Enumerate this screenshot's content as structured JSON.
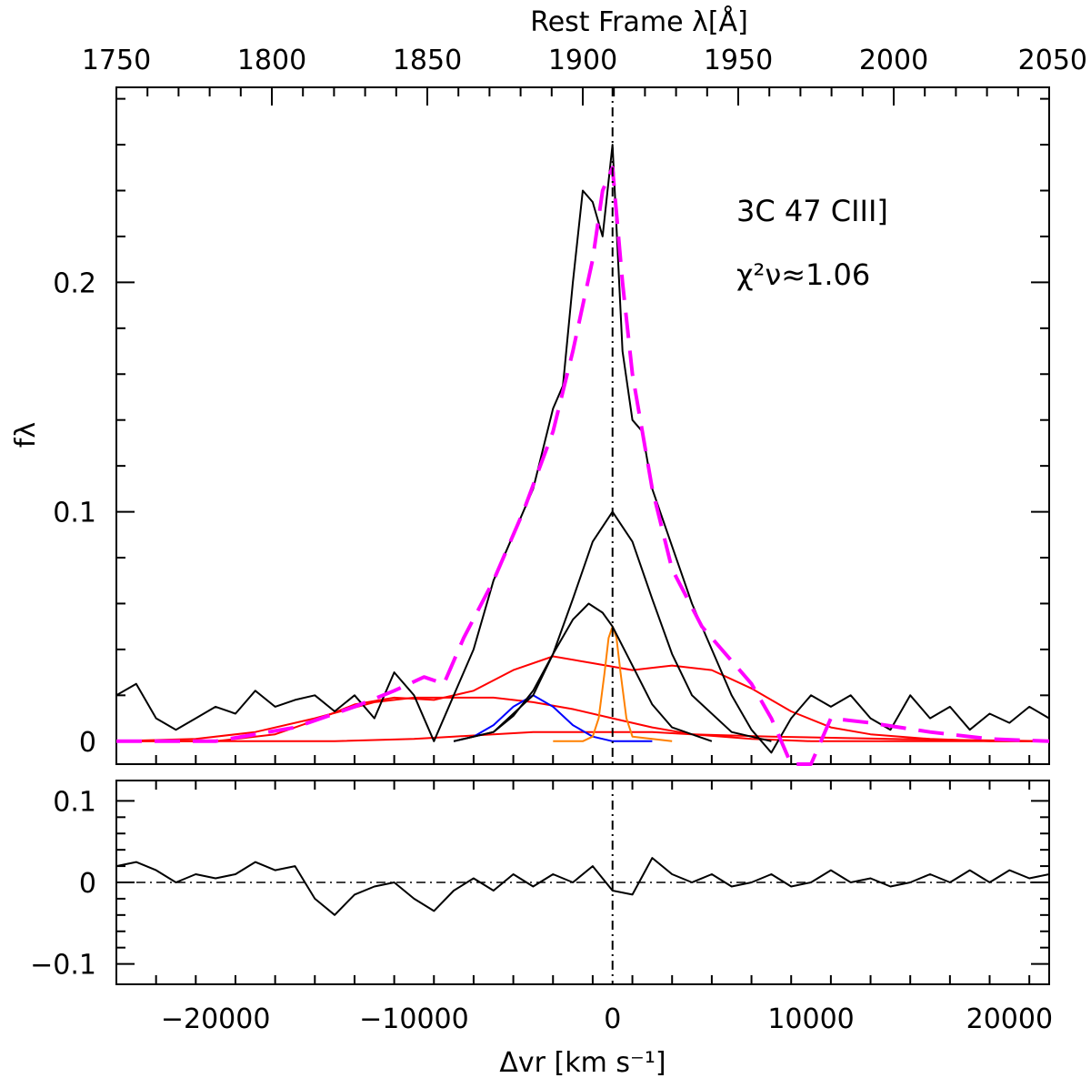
{
  "chart_data": [
    {
      "type": "line",
      "annotation_name": "3C 47 CIII]",
      "annotation_chi2": "χ²ν≈1.06",
      "ylabel": "fλ",
      "top_xlabel": "Rest Frame λ[Å]",
      "xlim": [
        -25000,
        22000
      ],
      "ylim": [
        -0.01,
        0.285
      ],
      "top_xlim": [
        1750,
        2050
      ],
      "top_ticks": [
        1750,
        1800,
        1850,
        1900,
        1950,
        2000,
        2050
      ],
      "top_tick_labels": [
        "1750",
        "1800",
        "1850",
        "1900",
        "1950",
        "2000",
        "2050"
      ],
      "y_ticks": [
        0,
        0.1,
        0.2
      ],
      "y_tick_labels": [
        "0",
        "0.1",
        "0.2"
      ],
      "vertical_reference_x": 0,
      "series": [
        {
          "color": "#000000",
          "style": "solid",
          "x": [
            -25000,
            -24000,
            -23000,
            -22000,
            -21000,
            -20000,
            -19000,
            -18000,
            -17000,
            -16000,
            -15000,
            -14000,
            -13000,
            -12000,
            -11000,
            -10000,
            -9000,
            -8000,
            -7000,
            -6000,
            -5000,
            -4000,
            -3000,
            -2500,
            -2000,
            -1500,
            -1000,
            -500,
            0,
            500,
            1000,
            1500,
            2000,
            3000,
            4000,
            5000,
            6000,
            7000,
            8000,
            9000,
            10000,
            11000,
            12000,
            13000,
            14000,
            15000,
            16000,
            17000,
            18000,
            19000,
            20000,
            21000,
            22000
          ],
          "values": [
            0.02,
            0.025,
            0.01,
            0.005,
            0.01,
            0.015,
            0.012,
            0.022,
            0.015,
            0.018,
            0.02,
            0.013,
            0.02,
            0.01,
            0.03,
            0.02,
            0.0,
            0.02,
            0.04,
            0.07,
            0.09,
            0.11,
            0.145,
            0.155,
            0.2,
            0.24,
            0.235,
            0.22,
            0.26,
            0.17,
            0.14,
            0.135,
            0.11,
            0.085,
            0.06,
            0.04,
            0.02,
            0.005,
            -0.005,
            0.01,
            0.02,
            0.015,
            0.02,
            0.01,
            0.005,
            0.02,
            0.01,
            0.015,
            0.005,
            0.012,
            0.008,
            0.015,
            0.01
          ]
        },
        {
          "color": "#ff00ff",
          "style": "dashed",
          "x": [
            -25000,
            -20000,
            -16000,
            -13000,
            -11000,
            -9500,
            -8500,
            -7500,
            -6000,
            -4500,
            -3000,
            -2000,
            -1000,
            -500,
            0,
            500,
            1000,
            2000,
            3000,
            4500,
            6000,
            7000,
            8000,
            9000,
            10000,
            11000,
            13000,
            16000,
            19000,
            22000
          ],
          "values": [
            0.0,
            0.0,
            0.006,
            0.015,
            0.022,
            0.028,
            0.025,
            0.045,
            0.07,
            0.1,
            0.135,
            0.17,
            0.21,
            0.24,
            0.25,
            0.2,
            0.16,
            0.11,
            0.075,
            0.05,
            0.035,
            0.025,
            0.01,
            -0.02,
            -0.015,
            0.01,
            0.008,
            0.004,
            0.001,
            0.0
          ]
        },
        {
          "color": "#000000",
          "style": "solid",
          "x": [
            -8000,
            -6000,
            -4000,
            -3000,
            -2000,
            -1000,
            0,
            1000,
            2000,
            3000,
            4000,
            6000,
            8000
          ],
          "values": [
            0.0,
            0.004,
            0.02,
            0.038,
            0.062,
            0.087,
            0.1,
            0.087,
            0.062,
            0.038,
            0.02,
            0.004,
            0.0
          ]
        },
        {
          "color": "#000000",
          "style": "solid",
          "x": [
            -8000,
            -6000,
            -5000,
            -4000,
            -3000,
            -2000,
            -1200,
            -500,
            0,
            1000,
            2000,
            3000,
            5000
          ],
          "values": [
            0.0,
            0.004,
            0.011,
            0.022,
            0.038,
            0.053,
            0.06,
            0.056,
            0.05,
            0.033,
            0.016,
            0.006,
            0.0
          ]
        },
        {
          "color": "#0000ff",
          "style": "solid",
          "x": [
            -8000,
            -7000,
            -6000,
            -5000,
            -4000,
            -3000,
            -2000,
            -1000,
            0,
            1000,
            2000
          ],
          "values": [
            0.0,
            0.002,
            0.007,
            0.015,
            0.02,
            0.015,
            0.007,
            0.002,
            0.0,
            0.0,
            0.0
          ]
        },
        {
          "color": "#ff8000",
          "style": "solid",
          "x": [
            -3000,
            -1500,
            -1000,
            -700,
            -400,
            -200,
            0,
            200,
            400,
            700,
            1000,
            3000
          ],
          "values": [
            0.0,
            0.0,
            0.002,
            0.01,
            0.03,
            0.045,
            0.05,
            0.045,
            0.03,
            0.01,
            0.002,
            0.0
          ]
        },
        {
          "color": "#ff0000",
          "style": "solid",
          "x": [
            -25000,
            -20000,
            -17000,
            -15000,
            -13000,
            -11000,
            -9000,
            -7000,
            -5000,
            -3000,
            -1000,
            1000,
            3000,
            5000,
            7000,
            9000,
            11000,
            13000,
            16000,
            19000,
            22000
          ],
          "values": [
            0.0,
            0.0,
            0.003,
            0.009,
            0.016,
            0.019,
            0.018,
            0.022,
            0.031,
            0.037,
            0.034,
            0.031,
            0.033,
            0.031,
            0.023,
            0.013,
            0.006,
            0.003,
            0.001,
            0.0,
            0.0
          ]
        },
        {
          "color": "#ff0000",
          "style": "solid",
          "x": [
            -25000,
            -21000,
            -18000,
            -15000,
            -12000,
            -10000,
            -8000,
            -6000,
            -4000,
            -2000,
            0,
            2000,
            4000,
            7000,
            10000,
            13000,
            22000
          ],
          "values": [
            0.0,
            0.001,
            0.004,
            0.01,
            0.017,
            0.019,
            0.019,
            0.019,
            0.017,
            0.014,
            0.01,
            0.006,
            0.003,
            0.001,
            0.0,
            0.0,
            0.0
          ]
        },
        {
          "color": "#ff0000",
          "style": "solid",
          "x": [
            -25000,
            -14000,
            -10000,
            -8000,
            -6000,
            -4000,
            -2000,
            0,
            2000,
            4000,
            8000,
            14000,
            22000
          ],
          "values": [
            0.0,
            0.0,
            0.001,
            0.002,
            0.003,
            0.004,
            0.004,
            0.004,
            0.004,
            0.003,
            0.002,
            0.001,
            0.0
          ]
        }
      ]
    },
    {
      "type": "line",
      "xlabel": "Δvr [km s⁻¹]",
      "xlim": [
        -25000,
        22000
      ],
      "ylim": [
        -0.125,
        0.125
      ],
      "x_ticks": [
        -20000,
        -10000,
        0,
        10000,
        20000
      ],
      "x_tick_labels": [
        "−20000",
        "−10000",
        "0",
        "10000",
        "20000"
      ],
      "y_ticks": [
        -0.1,
        0,
        0.1
      ],
      "y_tick_labels": [
        "−0.1",
        "0",
        "0.1"
      ],
      "vertical_reference_x": 0,
      "horizontal_reference_y": 0,
      "series": [
        {
          "color": "#000000",
          "style": "solid",
          "x": [
            -25000,
            -24000,
            -23000,
            -22000,
            -21000,
            -20000,
            -19000,
            -18000,
            -17000,
            -16000,
            -15000,
            -14000,
            -13000,
            -12000,
            -11000,
            -10000,
            -9000,
            -8000,
            -7000,
            -6000,
            -5000,
            -4000,
            -3000,
            -2000,
            -1000,
            0,
            1000,
            2000,
            3000,
            4000,
            5000,
            6000,
            7000,
            8000,
            9000,
            10000,
            11000,
            12000,
            13000,
            14000,
            15000,
            16000,
            17000,
            18000,
            19000,
            20000,
            21000,
            22000
          ],
          "values": [
            0.02,
            0.025,
            0.015,
            0.0,
            0.01,
            0.005,
            0.01,
            0.025,
            0.015,
            0.02,
            -0.02,
            -0.04,
            -0.015,
            -0.005,
            0.0,
            -0.02,
            -0.035,
            -0.01,
            0.005,
            -0.01,
            0.01,
            -0.005,
            0.01,
            0.0,
            0.02,
            -0.01,
            -0.015,
            0.03,
            0.01,
            0.0,
            0.01,
            -0.005,
            0.0,
            0.01,
            -0.005,
            0.0,
            0.015,
            0.0,
            0.005,
            -0.005,
            0.0,
            0.01,
            0.0,
            0.015,
            0.0,
            0.015,
            0.005,
            0.01
          ]
        }
      ]
    }
  ]
}
